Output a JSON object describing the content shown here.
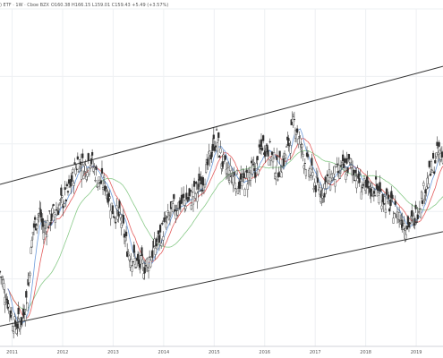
{
  "header": {
    "symbol": ") ETF · 1W · Cboe BZX",
    "ohlc": "O160.38 H166.15 L159.01 C159.43 +5.49 (+3.57%)"
  },
  "chart_data": {
    "type": "candlestick",
    "interval": "1W",
    "x_tick_labels": [
      "2011",
      "2012",
      "2013",
      "2014",
      "2015",
      "2016",
      "2017",
      "2018",
      "2019"
    ],
    "xlim": [
      2010.76,
      2019.53
    ],
    "ylim": [
      60,
      160
    ],
    "grid": true,
    "colors": {
      "up": "#26a69a",
      "down": "#ef5350",
      "fast_ma": "#5b8fd6",
      "mid_ma": "#e04a4a",
      "slow_ma": "#7cc47c",
      "channel": "#333333"
    },
    "keypoints": [
      [
        2010.76,
        82
      ],
      [
        2010.9,
        74
      ],
      [
        2011.05,
        66
      ],
      [
        2011.2,
        68
      ],
      [
        2011.3,
        75
      ],
      [
        2011.42,
        95
      ],
      [
        2011.55,
        100
      ],
      [
        2011.62,
        94
      ],
      [
        2011.8,
        99
      ],
      [
        2011.95,
        102
      ],
      [
        2012.1,
        105
      ],
      [
        2012.3,
        115
      ],
      [
        2012.45,
        113
      ],
      [
        2012.55,
        116
      ],
      [
        2012.7,
        109
      ],
      [
        2012.85,
        108
      ],
      [
        2013.0,
        100
      ],
      [
        2013.15,
        98
      ],
      [
        2013.3,
        88
      ],
      [
        2013.5,
        84
      ],
      [
        2013.65,
        84
      ],
      [
        2013.85,
        90
      ],
      [
        2014.0,
        95
      ],
      [
        2014.2,
        101
      ],
      [
        2014.4,
        103
      ],
      [
        2014.55,
        104
      ],
      [
        2014.7,
        107
      ],
      [
        2014.85,
        112
      ],
      [
        2014.95,
        118
      ],
      [
        2015.05,
        122
      ],
      [
        2015.15,
        115
      ],
      [
        2015.25,
        112
      ],
      [
        2015.4,
        110
      ],
      [
        2015.55,
        108
      ],
      [
        2015.7,
        111
      ],
      [
        2015.85,
        113
      ],
      [
        2015.95,
        120
      ],
      [
        2016.1,
        118
      ],
      [
        2016.25,
        112
      ],
      [
        2016.4,
        116
      ],
      [
        2016.5,
        122
      ],
      [
        2016.6,
        127
      ],
      [
        2016.7,
        120
      ],
      [
        2016.8,
        115
      ],
      [
        2016.9,
        112
      ],
      [
        2017.0,
        108
      ],
      [
        2017.15,
        106
      ],
      [
        2017.3,
        110
      ],
      [
        2017.5,
        112
      ],
      [
        2017.7,
        114
      ],
      [
        2017.85,
        110
      ],
      [
        2018.0,
        106
      ],
      [
        2018.2,
        107
      ],
      [
        2018.4,
        103
      ],
      [
        2018.6,
        100
      ],
      [
        2018.8,
        96
      ],
      [
        2018.95,
        97
      ],
      [
        2019.1,
        104
      ],
      [
        2019.3,
        112
      ],
      [
        2019.45,
        118
      ],
      [
        2019.53,
        116
      ]
    ],
    "channel_upper": [
      [
        2010.76,
        108
      ],
      [
        2019.53,
        143
      ]
    ],
    "channel_lower": [
      [
        2010.76,
        66
      ],
      [
        2019.53,
        94
      ]
    ]
  }
}
